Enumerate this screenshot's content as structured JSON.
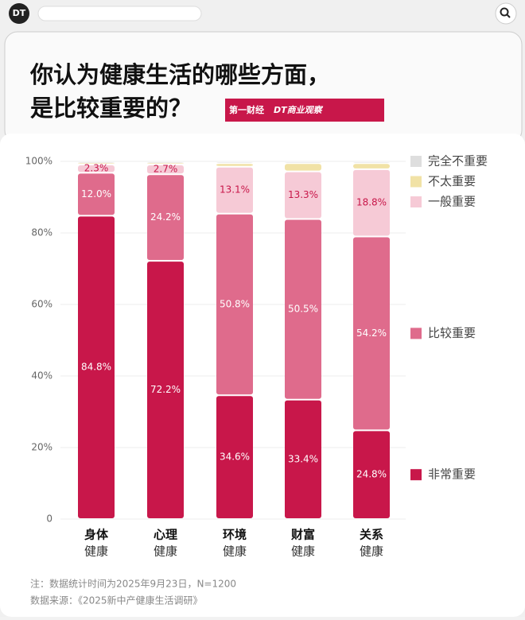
{
  "header": {
    "logo": "DT"
  },
  "chart_data": {
    "type": "stacked-bar",
    "title": [
      "你认为健康生活的哪些方面，",
      "是比较重要的？"
    ],
    "brand": [
      "第一财经",
      "DT商业观察"
    ],
    "categories": [
      [
        "身体",
        "健康"
      ],
      [
        "心理",
        "健康"
      ],
      [
        "环境",
        "健康"
      ],
      [
        "财富",
        "健康"
      ],
      [
        "关系",
        "健康"
      ]
    ],
    "series": [
      {
        "name": "非常重要",
        "color": "#c8174a",
        "values": [
          84.8,
          72.2,
          34.6,
          33.4,
          24.8
        ],
        "value_labels": [
          "84.8%",
          "72.2%",
          "34.6%",
          "33.4%",
          "24.8%"
        ]
      },
      {
        "name": "比较重要",
        "color": "#df6b8c",
        "values": [
          12.0,
          24.2,
          50.8,
          50.5,
          54.2
        ],
        "value_labels": [
          "12.0%",
          "24.2%",
          "50.8%",
          "50.5%",
          "54.2%"
        ]
      },
      {
        "name": "一般重要",
        "color": "#f6cad6",
        "values": [
          2.3,
          2.7,
          13.1,
          13.3,
          18.8
        ],
        "value_labels": [
          "2.3%",
          "2.7%",
          "13.1%",
          "13.3%",
          "18.8%"
        ]
      },
      {
        "name": "不太重要",
        "color": "#f1e2a6",
        "values": [
          0.6,
          0.6,
          1.0,
          2.3,
          1.7
        ]
      },
      {
        "name": "完全不重要",
        "color": "#dedede",
        "values": [
          0.3,
          0.3,
          0.5,
          0.5,
          0.5
        ]
      }
    ],
    "ylim": [
      0,
      100
    ],
    "yticks": [
      0,
      {
        "value": 20,
        "label": "20%"
      },
      {
        "value": 40,
        "label": "40%"
      },
      {
        "value": 60,
        "label": "60%"
      },
      {
        "value": 80,
        "label": "80%"
      },
      {
        "value": 100,
        "label": "100%"
      }
    ],
    "grid": true,
    "notes": [
      "注：数据统计时间为2025年9月23日，N=1200",
      "数据来源：《2025新中产健康生活调研》"
    ]
  }
}
